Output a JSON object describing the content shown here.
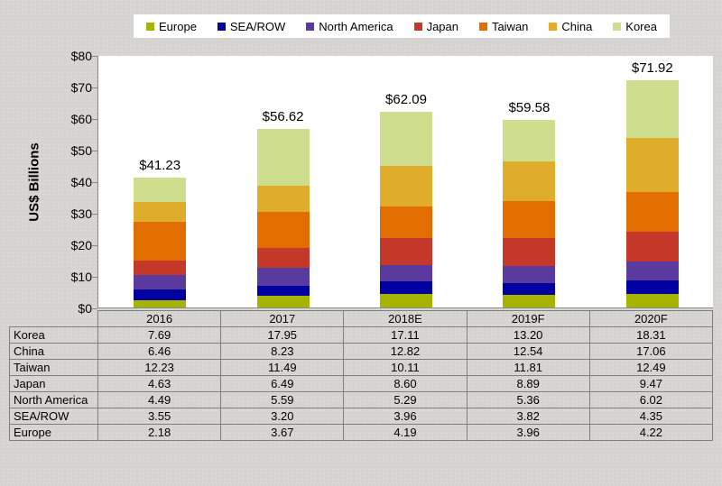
{
  "legend": {
    "items": [
      {
        "label": "Europe",
        "color": "#a6b400"
      },
      {
        "label": "SEA/ROW",
        "color": "#0000a0"
      },
      {
        "label": "North America",
        "color": "#5a3a9e"
      },
      {
        "label": "Japan",
        "color": "#c4392a"
      },
      {
        "label": "Taiwan",
        "color": "#e26d00"
      },
      {
        "label": "China",
        "color": "#dfac2b"
      },
      {
        "label": "Korea",
        "color": "#cede8c"
      }
    ]
  },
  "chart": {
    "y_axis_title": "US$ Billions",
    "y_ticks": [
      "$0",
      "$10",
      "$20",
      "$30",
      "$40",
      "$50",
      "$60",
      "$70",
      "$80"
    ]
  },
  "chart_data": {
    "type": "bar",
    "stacked": true,
    "title": "",
    "xlabel": "",
    "ylabel": "US$ Billions",
    "ylim": [
      0,
      80
    ],
    "grid": false,
    "legend_position": "top",
    "categories": [
      "2016",
      "2017",
      "2018E",
      "2019F",
      "2020F"
    ],
    "series": [
      {
        "name": "Europe",
        "color": "#a6b400",
        "values": [
          2.18,
          3.67,
          4.19,
          3.96,
          4.22
        ]
      },
      {
        "name": "SEA/ROW",
        "color": "#0000a0",
        "values": [
          3.55,
          3.2,
          3.96,
          3.82,
          4.35
        ]
      },
      {
        "name": "North America",
        "color": "#5a3a9e",
        "values": [
          4.49,
          5.59,
          5.29,
          5.36,
          6.02
        ]
      },
      {
        "name": "Japan",
        "color": "#c4392a",
        "values": [
          4.63,
          6.49,
          8.6,
          8.89,
          9.47
        ]
      },
      {
        "name": "Taiwan",
        "color": "#e26d00",
        "values": [
          12.23,
          11.49,
          10.11,
          11.81,
          12.49
        ]
      },
      {
        "name": "China",
        "color": "#dfac2b",
        "values": [
          6.46,
          8.23,
          12.82,
          12.54,
          17.06
        ]
      },
      {
        "name": "Korea",
        "color": "#cede8c",
        "values": [
          7.69,
          17.95,
          17.11,
          13.2,
          18.31
        ]
      }
    ],
    "totals": [
      41.23,
      56.62,
      62.09,
      59.58,
      71.92
    ],
    "total_labels": [
      "$41.23",
      "$56.62",
      "$62.09",
      "$59.58",
      "$71.92"
    ]
  },
  "table": {
    "header": [
      "2016",
      "2017",
      "2018E",
      "2019F",
      "2020F"
    ],
    "rows": [
      {
        "label": "Korea",
        "values": [
          "7.69",
          "17.95",
          "17.11",
          "13.20",
          "18.31"
        ]
      },
      {
        "label": "China",
        "values": [
          "6.46",
          "8.23",
          "12.82",
          "12.54",
          "17.06"
        ]
      },
      {
        "label": "Taiwan",
        "values": [
          "12.23",
          "11.49",
          "10.11",
          "11.81",
          "12.49"
        ]
      },
      {
        "label": "Japan",
        "values": [
          "4.63",
          "6.49",
          "8.60",
          "8.89",
          "9.47"
        ]
      },
      {
        "label": "North America",
        "values": [
          "4.49",
          "5.59",
          "5.29",
          "5.36",
          "6.02"
        ]
      },
      {
        "label": "SEA/ROW",
        "values": [
          "3.55",
          "3.20",
          "3.96",
          "3.82",
          "4.35"
        ]
      },
      {
        "label": "Europe",
        "values": [
          "2.18",
          "3.67",
          "4.19",
          "3.96",
          "4.22"
        ]
      }
    ]
  }
}
